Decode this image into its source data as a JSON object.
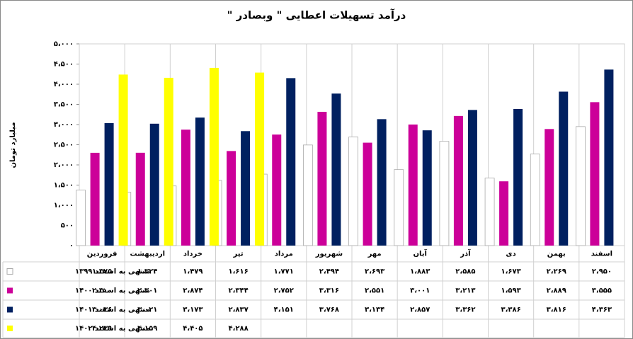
{
  "chart_data": {
    "type": "bar",
    "title": "درآمد تسهیلات اعطایی \" وبصادر \"",
    "y_label": "میلیارد تومان",
    "categories": [
      "فروردین",
      "اردیبهشت",
      "خرداد",
      "تیر",
      "مرداد",
      "شهریور",
      "مهر",
      "آبان",
      "آذر",
      "دی",
      "بهمن",
      "اسفند"
    ],
    "ylim": [
      0,
      5000
    ],
    "yticks": [
      {
        "value": 0,
        "label": "۰"
      },
      {
        "value": 500,
        "label": "۵۰۰"
      },
      {
        "value": 1000,
        "label": "۱،۰۰۰"
      },
      {
        "value": 1500,
        "label": "۱،۵۰۰"
      },
      {
        "value": 2000,
        "label": "۲،۰۰۰"
      },
      {
        "value": 2500,
        "label": "۲،۵۰۰"
      },
      {
        "value": 3000,
        "label": "۳،۰۰۰"
      },
      {
        "value": 3500,
        "label": "۳،۵۰۰"
      },
      {
        "value": 4000,
        "label": "۴،۰۰۰"
      },
      {
        "value": 4500,
        "label": "۴،۵۰۰"
      },
      {
        "value": 5000,
        "label": "۵،۰۰۰"
      }
    ],
    "series": [
      {
        "name": "منتهی به اسفند ۱۳۹۹",
        "color": "#ffffff",
        "values": [
          1375,
          1324,
          1479,
          1616,
          1771,
          2494,
          2693,
          1883,
          2585,
          1673,
          2269,
          2950
        ],
        "value_labels": [
          "۱،۳۷۵",
          "۱،۳۲۴",
          "۱،۴۷۹",
          "۱،۶۱۶",
          "۱،۷۷۱",
          "۲،۴۹۴",
          "۲،۶۹۳",
          "۱،۸۸۳",
          "۲،۵۸۵",
          "۱،۶۷۳",
          "۲،۲۶۹",
          "۲،۹۵۰"
        ]
      },
      {
        "name": "منتهی به اسفند ۱۴۰۰",
        "color": "#cc0099",
        "values": [
          2300,
          2301,
          2874,
          2344,
          2752,
          3316,
          2551,
          3001,
          3213,
          1593,
          2889,
          3555
        ],
        "value_labels": [
          "۲،۳۰۰",
          "۲،۳۰۱",
          "۲،۸۷۴",
          "۲،۳۴۴",
          "۲،۷۵۲",
          "۳،۳۱۶",
          "۲،۵۵۱",
          "۳،۰۰۱",
          "۳،۲۱۳",
          "۱،۵۹۳",
          "۲،۸۸۹",
          "۳،۵۵۵"
        ]
      },
      {
        "name": "منتهی به اسفند ۱۴۰۱",
        "color": "#002060",
        "values": [
          3036,
          3021,
          3173,
          2837,
          4151,
          3768,
          3134,
          2857,
          3362,
          3386,
          3816,
          4363
        ],
        "value_labels": [
          "۳،۰۳۶",
          "۳،۰۲۱",
          "۳،۱۷۳",
          "۲،۸۳۷",
          "۴،۱۵۱",
          "۳،۷۶۸",
          "۳،۱۳۴",
          "۲،۸۵۷",
          "۳،۳۶۲",
          "۳،۳۸۶",
          "۳،۸۱۶",
          "۴،۳۶۳"
        ]
      },
      {
        "name": "منتهی به اسفند ۱۴۰۲",
        "color": "#ffff00",
        "values": [
          4239,
          4159,
          4405,
          4288,
          null,
          null,
          null,
          null,
          null,
          null,
          null,
          null
        ],
        "value_labels": [
          "۴،۲۳۹",
          "۴،۱۵۹",
          "۴،۴۰۵",
          "۴،۲۸۸",
          null,
          null,
          null,
          null,
          null,
          null,
          null,
          null
        ]
      }
    ]
  }
}
